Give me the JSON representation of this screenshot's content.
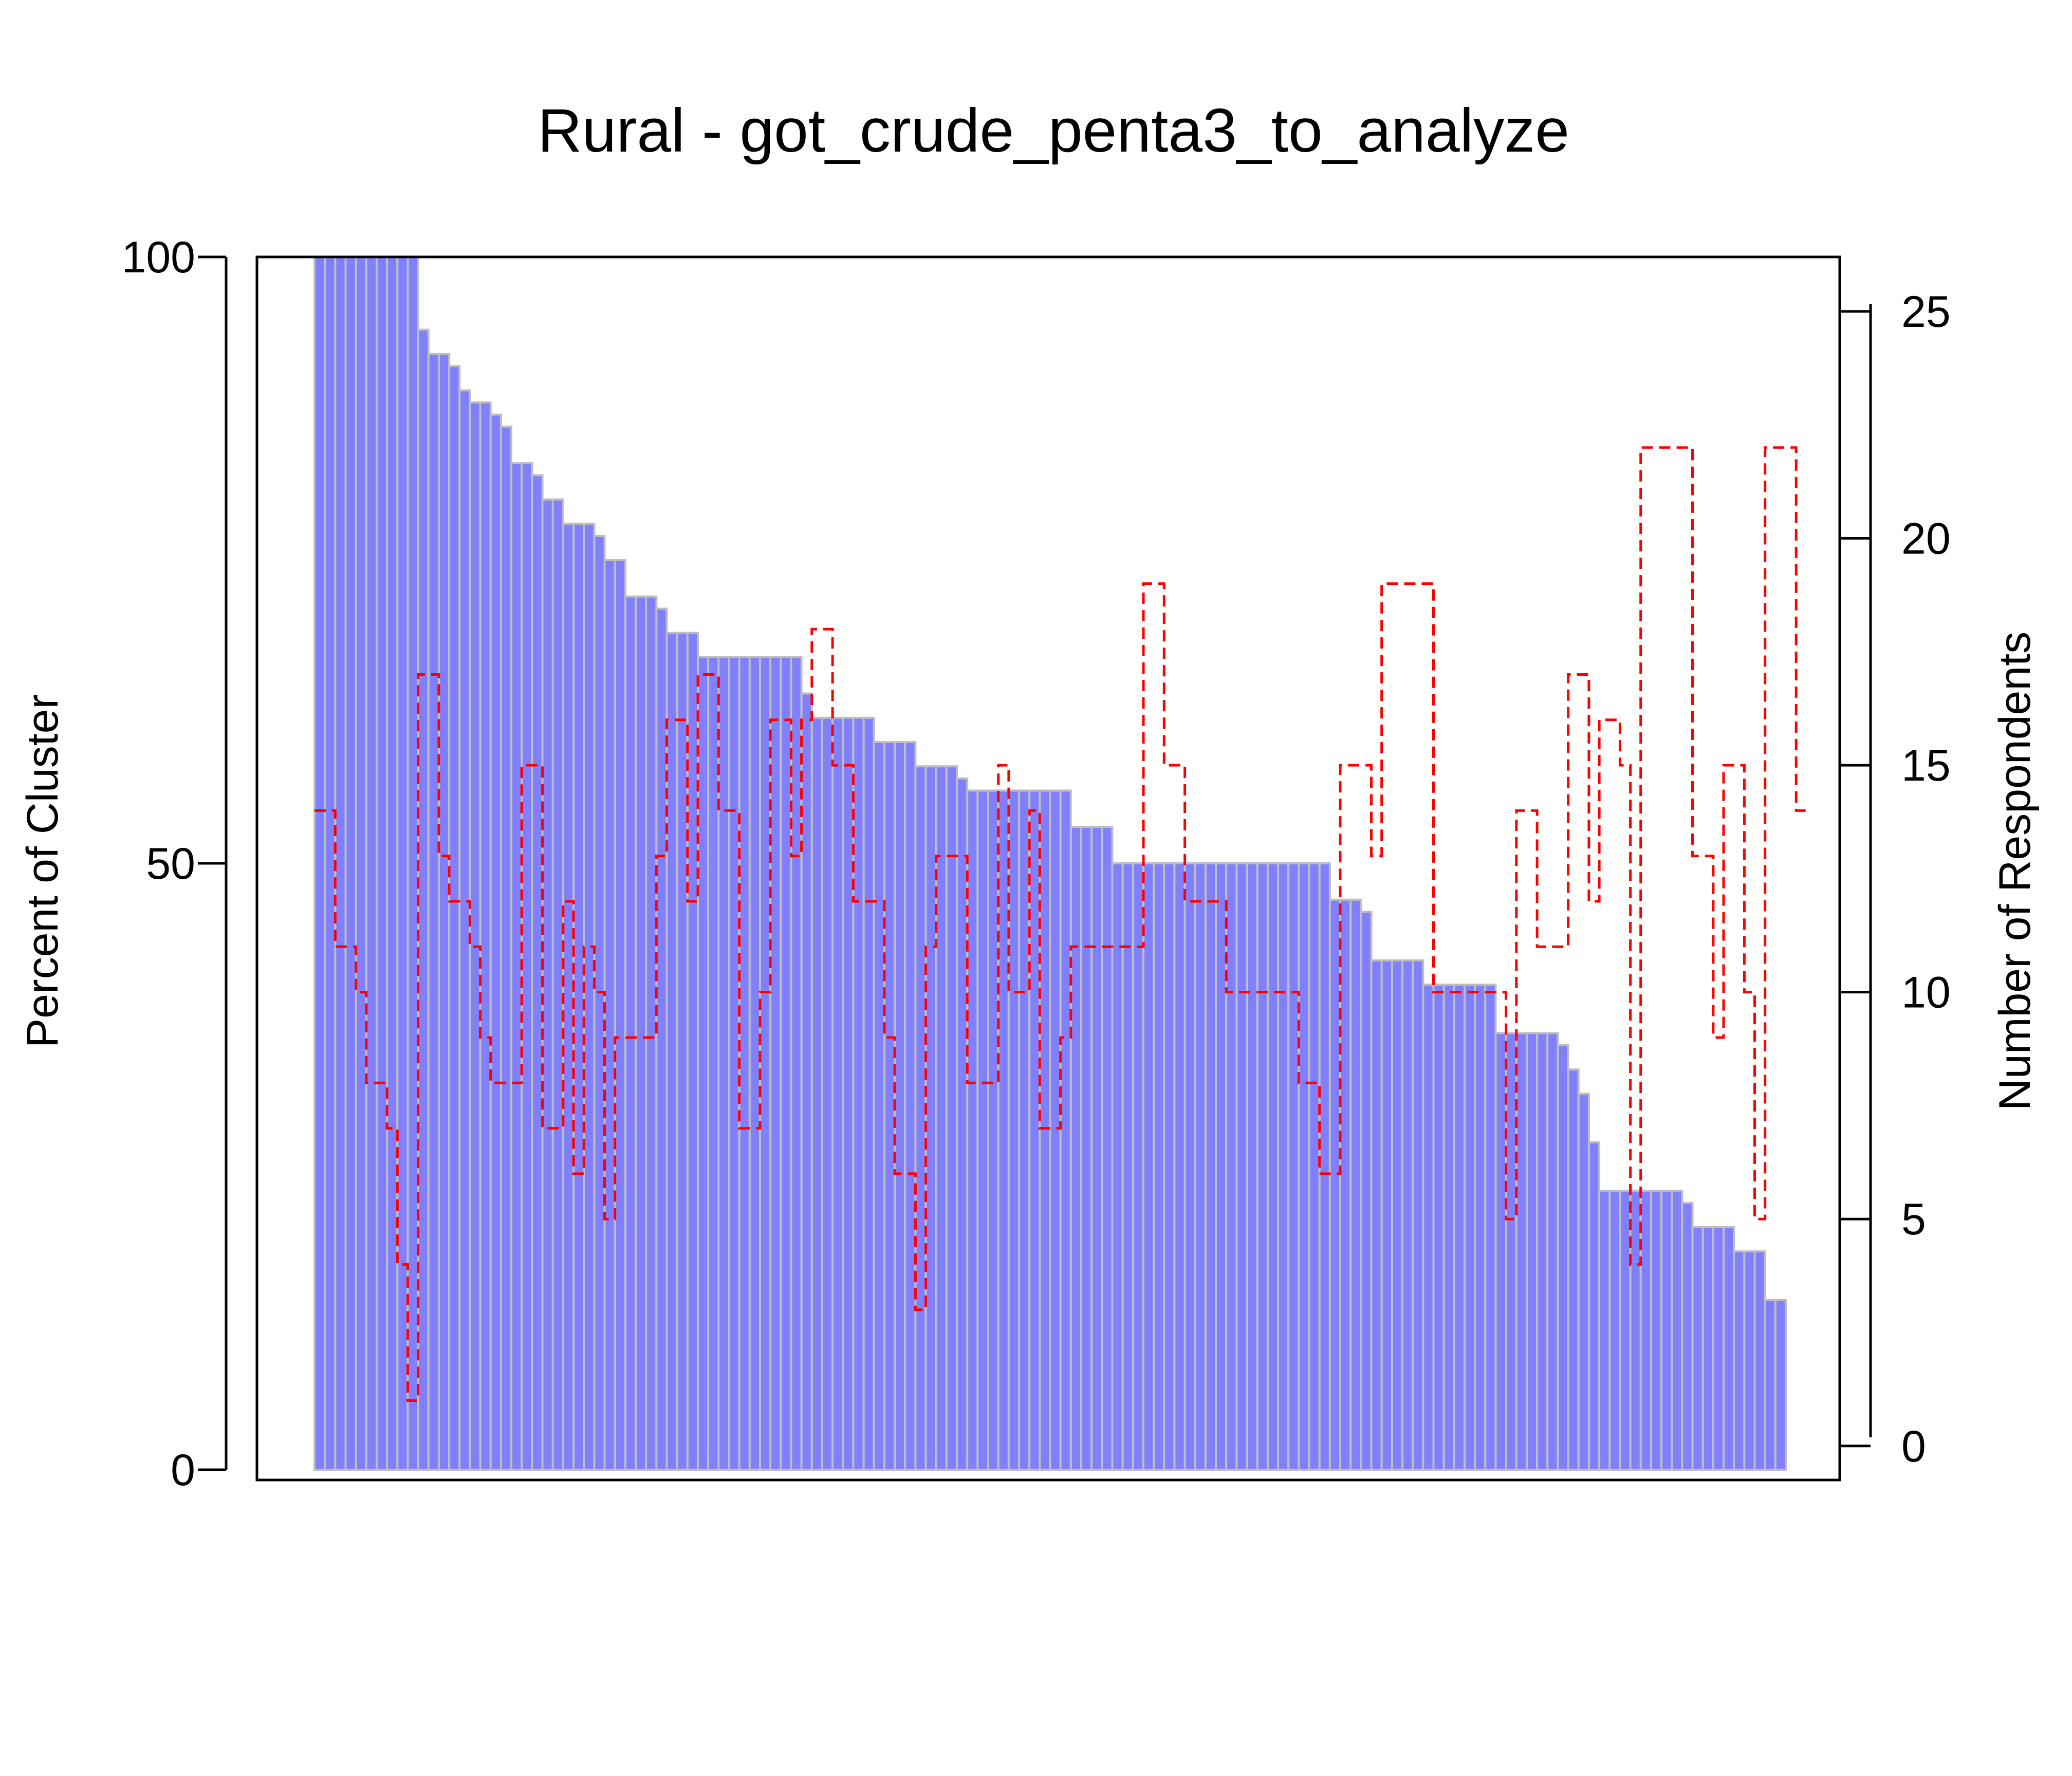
{
  "chart_data": {
    "type": "bar",
    "title": "Rural - got_crude_penta3_to_analyze",
    "ylabel": "Percent of Cluster",
    "y2label": "Number of Respondents",
    "ylim": [
      0,
      100
    ],
    "y2lim": [
      -0.75,
      26.2
    ],
    "yticks": [
      "0",
      "50",
      "100"
    ],
    "y2ticks": [
      "0",
      "5",
      "10",
      "15",
      "20",
      "25"
    ],
    "bar_color": "#8080FF",
    "bar_border_color": "#BEBEBE",
    "line_color": "#FF0000",
    "series": [
      {
        "name": "Percent of Cluster",
        "type": "bar",
        "values": [
          100,
          100,
          100,
          100,
          100,
          100,
          100,
          100,
          100,
          100,
          94,
          92,
          92,
          91,
          89,
          88,
          88,
          87,
          86,
          83,
          83,
          82,
          80,
          80,
          78,
          78,
          78,
          77,
          75,
          75,
          72,
          72,
          72,
          71,
          69,
          69,
          69,
          67,
          67,
          67,
          67,
          67,
          67,
          67,
          67,
          67,
          67,
          64,
          62,
          62,
          62,
          62,
          62,
          62,
          60,
          60,
          60,
          60,
          58,
          58,
          58,
          58,
          57,
          56,
          56,
          56,
          56,
          56,
          56,
          56,
          56,
          56,
          56,
          53,
          53,
          53,
          53,
          50,
          50,
          50,
          50,
          50,
          50,
          50,
          50,
          50,
          50,
          50,
          50,
          50,
          50,
          50,
          50,
          50,
          50,
          50,
          50,
          50,
          47,
          47,
          47,
          46,
          42,
          42,
          42,
          42,
          42,
          40,
          40,
          40,
          40,
          40,
          40,
          40,
          36,
          36,
          36,
          36,
          36,
          36,
          35,
          33,
          31,
          27,
          23,
          23,
          23,
          23,
          23,
          23,
          23,
          23,
          22,
          20,
          20,
          20,
          20,
          18,
          18,
          18,
          14,
          14
        ]
      },
      {
        "name": "Number of Respondents",
        "type": "step",
        "values": [
          14,
          14,
          11,
          11,
          10,
          8,
          8,
          7,
          4,
          1,
          17,
          17,
          13,
          12,
          12,
          11,
          9,
          8,
          8,
          8,
          15,
          15,
          7,
          7,
          12,
          6,
          11,
          10,
          5,
          9,
          9,
          9,
          9,
          13,
          16,
          16,
          12,
          17,
          17,
          14,
          14,
          7,
          7,
          10,
          16,
          16,
          13,
          16,
          18,
          18,
          15,
          15,
          12,
          12,
          12,
          9,
          6,
          6,
          3,
          11,
          13,
          13,
          13,
          8,
          8,
          8,
          15,
          10,
          10,
          14,
          7,
          7,
          9,
          11,
          11,
          11,
          11,
          11,
          11,
          11,
          19,
          19,
          15,
          15,
          12,
          12,
          12,
          12,
          10,
          10,
          10,
          10,
          10,
          10,
          10,
          8,
          8,
          6,
          6,
          15,
          15,
          15,
          13,
          19,
          19,
          19,
          19,
          19,
          10,
          10,
          10,
          10,
          10,
          10,
          10,
          5,
          14,
          14,
          11,
          11,
          11,
          17,
          17,
          12,
          16,
          16,
          15,
          4,
          22,
          22,
          22,
          22,
          22,
          13,
          13,
          9,
          15,
          15,
          10,
          5,
          22,
          22,
          22,
          14
        ]
      }
    ]
  }
}
